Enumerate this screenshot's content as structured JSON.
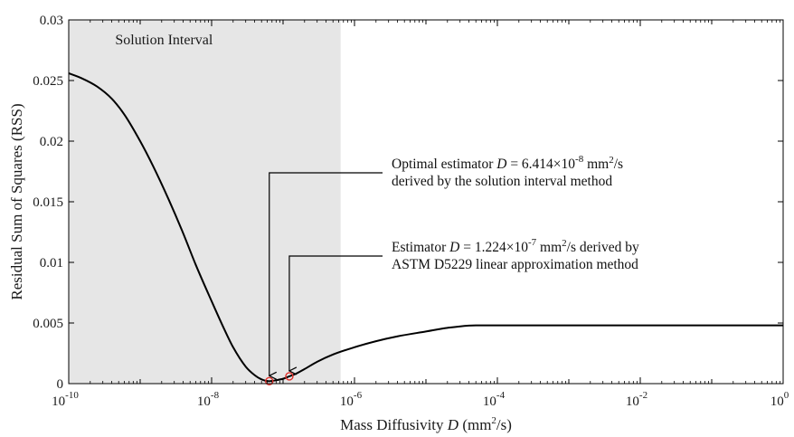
{
  "chart_data": {
    "type": "line",
    "x_scale": "log",
    "xlim": [
      1e-10,
      1
    ],
    "ylim": [
      0,
      0.03
    ],
    "xlabel_prefix": "Mass Diffusivity ",
    "xlabel_var": "D",
    "xlabel_suffix": " (mm",
    "xlabel_sup": "2",
    "xlabel_end": "/s)",
    "ylabel": "Residual Sum of Squares (RSS)",
    "x_ticks": [
      {
        "value": 1e-10,
        "base": "10",
        "exp": "-10"
      },
      {
        "value": 1e-08,
        "base": "10",
        "exp": "-8"
      },
      {
        "value": 1e-06,
        "base": "10",
        "exp": "-6"
      },
      {
        "value": 0.0001,
        "base": "10",
        "exp": "-4"
      },
      {
        "value": 0.01,
        "base": "10",
        "exp": "-2"
      },
      {
        "value": 1,
        "base": "10",
        "exp": "0"
      }
    ],
    "y_ticks": [
      {
        "value": 0,
        "label": "0"
      },
      {
        "value": 0.005,
        "label": "0.005"
      },
      {
        "value": 0.01,
        "label": "0.01"
      },
      {
        "value": 0.015,
        "label": "0.015"
      },
      {
        "value": 0.02,
        "label": "0.02"
      },
      {
        "value": 0.025,
        "label": "0.025"
      },
      {
        "value": 0.03,
        "label": "0.03"
      }
    ],
    "region": {
      "label": "Solution Interval",
      "x_range": [
        1e-10,
        6.4e-07
      ],
      "color": "#e6e6e6"
    },
    "series": [
      {
        "color": "#000000",
        "x": [
          1e-10,
          1.5e-10,
          2.5e-10,
          4e-10,
          6e-10,
          1e-09,
          1.5e-09,
          2.5e-09,
          4e-09,
          6e-09,
          1e-08,
          1.5e-08,
          2e-08,
          3e-08,
          4e-08,
          5e-08,
          6.4e-08,
          8e-08,
          1e-07,
          1.224e-07,
          1.5e-07,
          2e-07,
          3e-07,
          5e-07,
          1e-06,
          2e-06,
          4e-06,
          1e-05,
          2e-05,
          5e-05,
          0.0001,
          0.001,
          0.01,
          0.1,
          1
        ],
        "y": [
          0.0256,
          0.0252,
          0.0245,
          0.0235,
          0.0222,
          0.02,
          0.018,
          0.0152,
          0.0124,
          0.0098,
          0.0068,
          0.0045,
          0.003,
          0.0014,
          0.0007,
          0.00035,
          0.0002,
          0.00028,
          0.0004,
          0.0006,
          0.0008,
          0.0012,
          0.0018,
          0.0024,
          0.003,
          0.0035,
          0.0039,
          0.0043,
          0.0046,
          0.0048,
          0.0048,
          0.0048,
          0.0048,
          0.0048,
          0.0048
        ]
      }
    ],
    "markers": [
      {
        "x": 6.414e-08,
        "y": 0.0002,
        "color": "#e0302a"
      },
      {
        "x": 1.224e-07,
        "y": 0.0006,
        "color": "#e0302a"
      }
    ],
    "annotations": [
      {
        "line1_pre": "Optimal estimator ",
        "line1_var": "D",
        "line1_mid": " = 6.414×10",
        "line1_exp": "-8",
        "line1_unit": " mm",
        "line1_unit_sup": "2",
        "line1_post": "/s",
        "line2": "derived by the solution interval method",
        "target_x": 6.414e-08,
        "target_y": 0.0002
      },
      {
        "line1_pre": "Estimator ",
        "line1_var": "D",
        "line1_mid": " = 1.224×10",
        "line1_exp": "-7",
        "line1_unit": " mm",
        "line1_unit_sup": "2",
        "line1_post": "/s derived by",
        "line2": "ASTM D5229 linear approximation method",
        "target_x": 1.224e-07,
        "target_y": 0.0006
      }
    ]
  }
}
